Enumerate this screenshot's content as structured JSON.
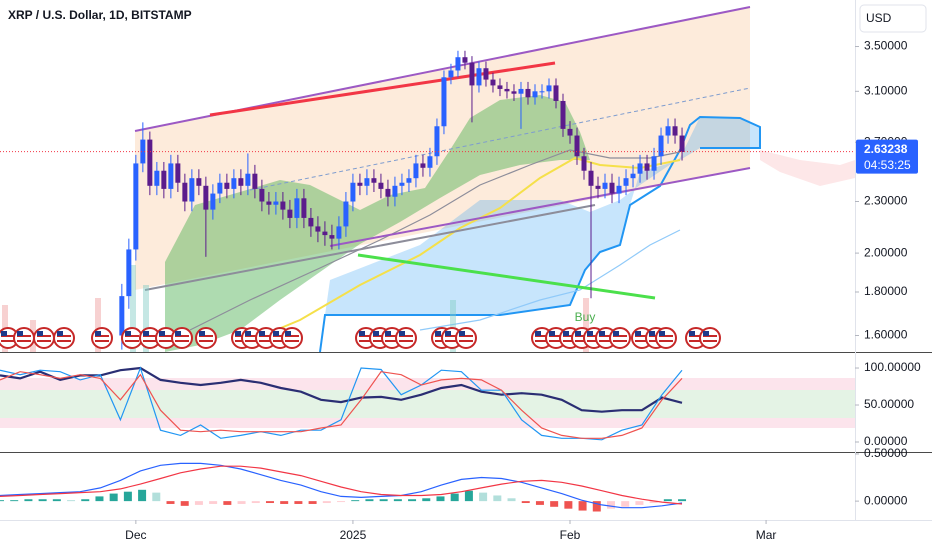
{
  "chart_data": [
    {
      "type": "candlestick",
      "title": "XRP / U.S. Dollar, 1D, BITSTAMP",
      "currency": "USD",
      "open": [
        1.6,
        1.78,
        2.02,
        2.55,
        2.72,
        2.4,
        2.5,
        2.38,
        2.55,
        2.42,
        2.3,
        2.45,
        2.4,
        2.25,
        2.35,
        2.42,
        2.38,
        2.45,
        2.4,
        2.48,
        2.38,
        2.3,
        2.28,
        2.3,
        2.25,
        2.2,
        2.32,
        2.2,
        2.15,
        2.12,
        2.1,
        2.08,
        2.15,
        2.3,
        2.42,
        2.4,
        2.45,
        2.42,
        2.38,
        2.33,
        2.4,
        2.42,
        2.45,
        2.55,
        2.52,
        2.6,
        2.82,
        3.22,
        3.28,
        3.4,
        3.35,
        3.15,
        3.3,
        3.2,
        3.15,
        3.12,
        3.1,
        3.08,
        3.12,
        3.05,
        3.1,
        3.1,
        3.15,
        3.02,
        2.8,
        2.75,
        2.6,
        2.5,
        2.4,
        2.38,
        2.42,
        2.35,
        2.4,
        2.45,
        2.48,
        2.55,
        2.5,
        2.6,
        2.75,
        2.82,
        2.75
      ],
      "high": [
        1.84,
        2.08,
        2.61,
        2.85,
        2.78,
        2.56,
        2.56,
        2.61,
        2.61,
        2.48,
        2.51,
        2.51,
        2.46,
        2.41,
        2.48,
        2.48,
        2.51,
        2.51,
        2.62,
        2.54,
        2.44,
        2.36,
        2.36,
        2.36,
        2.31,
        2.38,
        2.38,
        2.26,
        2.21,
        2.18,
        2.16,
        2.21,
        2.36,
        2.48,
        2.48,
        2.51,
        2.51,
        2.48,
        2.44,
        2.46,
        2.48,
        2.51,
        2.61,
        2.61,
        2.66,
        2.88,
        3.28,
        3.34,
        3.46,
        3.46,
        3.41,
        3.36,
        3.36,
        3.26,
        3.21,
        3.18,
        3.16,
        3.18,
        3.18,
        3.16,
        3.16,
        3.21,
        3.21,
        3.08,
        2.86,
        2.81,
        2.66,
        2.56,
        2.46,
        2.48,
        2.48,
        2.46,
        2.51,
        2.54,
        2.61,
        2.61,
        2.66,
        2.81,
        2.88,
        2.88,
        2.81
      ],
      "low": [
        1.54,
        1.72,
        1.96,
        2.49,
        2.34,
        2.34,
        2.32,
        2.32,
        2.36,
        2.24,
        2.24,
        2.34,
        1.98,
        2.19,
        2.29,
        2.32,
        2.32,
        2.34,
        2.34,
        2.32,
        2.24,
        2.22,
        2.22,
        2.19,
        2.14,
        2.14,
        2.14,
        2.09,
        2.06,
        2.04,
        2.02,
        2.02,
        2.09,
        2.24,
        2.34,
        2.34,
        2.36,
        2.32,
        2.27,
        2.27,
        2.34,
        2.36,
        2.39,
        2.46,
        2.46,
        2.54,
        2.76,
        3.16,
        3.22,
        3.29,
        2.85,
        3.09,
        3.14,
        3.09,
        3.06,
        3.04,
        3.02,
        2.8,
        2.99,
        2.99,
        3.04,
        3.04,
        2.96,
        2.74,
        2.69,
        2.54,
        2.44,
        1.77,
        2.32,
        2.32,
        2.29,
        2.29,
        2.34,
        2.39,
        2.42,
        2.44,
        2.44,
        2.54,
        2.69,
        2.69,
        2.57
      ],
      "close": [
        1.78,
        2.02,
        2.55,
        2.72,
        2.4,
        2.5,
        2.38,
        2.55,
        2.42,
        2.3,
        2.45,
        2.4,
        2.25,
        2.35,
        2.42,
        2.38,
        2.45,
        2.4,
        2.48,
        2.38,
        2.3,
        2.28,
        2.3,
        2.25,
        2.2,
        2.32,
        2.2,
        2.15,
        2.12,
        2.1,
        2.08,
        2.15,
        2.3,
        2.42,
        2.4,
        2.45,
        2.42,
        2.38,
        2.33,
        2.4,
        2.42,
        2.45,
        2.55,
        2.52,
        2.6,
        2.82,
        3.22,
        3.28,
        3.4,
        3.35,
        3.15,
        3.3,
        3.2,
        3.15,
        3.12,
        3.1,
        3.08,
        3.12,
        3.05,
        3.1,
        3.1,
        3.15,
        3.02,
        2.8,
        2.75,
        2.6,
        2.5,
        2.4,
        2.38,
        2.42,
        2.35,
        2.4,
        2.45,
        2.48,
        2.55,
        2.5,
        2.6,
        2.75,
        2.82,
        2.75,
        2.63
      ],
      "up_color": "#2962ff",
      "down_color": "#5b1c8c",
      "log_scale": true,
      "ylim": [
        1.53,
        3.97
      ],
      "yticks": [
        {
          "value": 1.6,
          "label": "1.60000"
        },
        {
          "value": 1.8,
          "label": "1.80000"
        },
        {
          "value": 2.0,
          "label": "2.00000"
        },
        {
          "value": 2.3,
          "label": "2.30000"
        },
        {
          "value": 2.7,
          "label": "2.70000"
        },
        {
          "value": 3.1,
          "label": "3.10000"
        },
        {
          "value": 3.5,
          "label": "3.50000"
        }
      ],
      "xlim": [
        -17.4,
        104.7
      ],
      "xticks": [
        {
          "value": 2,
          "label": "Dec"
        },
        {
          "value": 33,
          "label": "2025"
        },
        {
          "value": 64,
          "label": "Feb"
        },
        {
          "value": 92,
          "label": "Mar"
        }
      ],
      "last_price": 2.63238,
      "countdown": "04:53:25",
      "price_line_color": "#f23645",
      "annotation": "Buy"
    },
    {
      "type": "line",
      "series": [
        {
          "color": "#2a2e73",
          "values": [
            90,
            86,
            95,
            84,
            90,
            90,
            97,
            100,
            84,
            80,
            77,
            80,
            84,
            80,
            73,
            68,
            57,
            54,
            60,
            61,
            57,
            64,
            73,
            77,
            68,
            64,
            66,
            64,
            57,
            43,
            41,
            43,
            43,
            60,
            53
          ]
        },
        {
          "color": "#2196f3",
          "values": [
            97,
            91,
            97,
            95,
            84,
            91,
            30,
            100,
            16,
            9,
            23,
            5,
            9,
            14,
            9,
            16,
            16,
            30,
            100,
            98,
            64,
            77,
            97,
            95,
            70,
            70,
            30,
            9,
            5,
            5,
            3,
            16,
            23,
            64,
            97
          ]
        },
        {
          "color": "#ef5350",
          "values": [
            84,
            95,
            91,
            86,
            91,
            86,
            57,
            91,
            43,
            16,
            14,
            16,
            14,
            14,
            14,
            14,
            19,
            23,
            57,
            95,
            91,
            77,
            84,
            86,
            84,
            70,
            43,
            19,
            9,
            5,
            5,
            9,
            19,
            57,
            86
          ]
        }
      ],
      "ylim": [
        -13.5,
        120.3
      ],
      "yticks": [
        {
          "value": 0,
          "label": "0.00000"
        },
        {
          "value": 50,
          "label": "50.00000"
        },
        {
          "value": 100,
          "label": "100.00000"
        }
      ]
    },
    {
      "type": "macd",
      "histogram": [
        0.01,
        0.01,
        0.02,
        0.02,
        0.02,
        0.01,
        0.02,
        0.05,
        0.08,
        0.1,
        0.12,
        0.09,
        -0.03,
        -0.05,
        -0.04,
        -0.03,
        -0.04,
        -0.03,
        -0.02,
        -0.02,
        -0.03,
        -0.03,
        -0.03,
        -0.02,
        -0.01,
        0.01,
        0.02,
        0.02,
        0.02,
        0.02,
        0.03,
        0.05,
        0.08,
        0.11,
        0.09,
        0.06,
        0.03,
        -0.02,
        -0.04,
        -0.06,
        -0.08,
        -0.1,
        -0.11,
        -0.08,
        -0.06,
        -0.04,
        -0.02,
        0.02,
        0.02
      ],
      "series": [
        {
          "color": "#2962ff",
          "values": [
            0.06,
            0.07,
            0.08,
            0.09,
            0.1,
            0.14,
            0.22,
            0.32,
            0.38,
            0.4,
            0.4,
            0.38,
            0.34,
            0.28,
            0.22,
            0.17,
            0.1,
            0.05,
            0.04,
            0.05,
            0.06,
            0.1,
            0.17,
            0.23,
            0.25,
            0.24,
            0.2,
            0.14,
            0.08,
            0.01,
            -0.04,
            -0.07,
            -0.07,
            -0.05,
            -0.02
          ]
        },
        {
          "color": "#f23645",
          "values": [
            0.05,
            0.06,
            0.07,
            0.08,
            0.09,
            0.1,
            0.13,
            0.18,
            0.24,
            0.3,
            0.34,
            0.37,
            0.37,
            0.35,
            0.31,
            0.27,
            0.21,
            0.15,
            0.1,
            0.07,
            0.06,
            0.06,
            0.07,
            0.1,
            0.14,
            0.18,
            0.21,
            0.22,
            0.2,
            0.16,
            0.11,
            0.06,
            0.02,
            -0.01,
            -0.03
          ]
        }
      ],
      "ylim": [
        -0.2,
        0.51
      ],
      "yticks": [
        {
          "value": 0,
          "label": "0.00000"
        },
        {
          "value": 0.5,
          "label": "0.50000"
        }
      ]
    }
  ]
}
